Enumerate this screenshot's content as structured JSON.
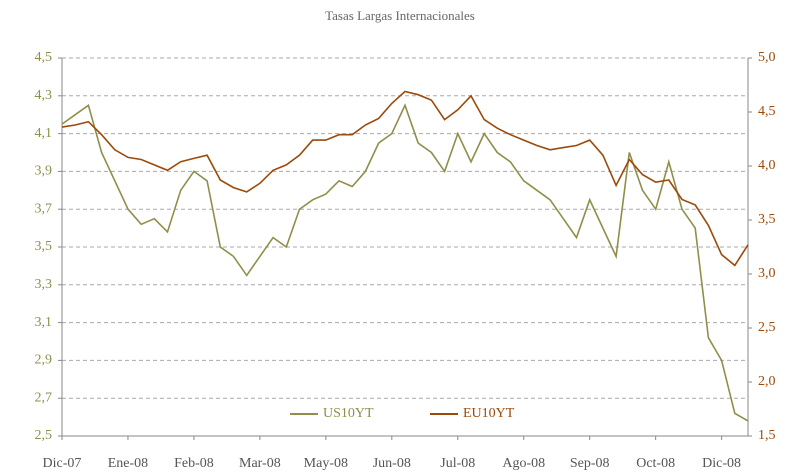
{
  "chart_data": {
    "type": "line",
    "title": "Tasas Largas Internacionales",
    "categories": [
      "Dic-07",
      null,
      null,
      null,
      null,
      "Ene-08",
      null,
      null,
      null,
      null,
      "Feb-08",
      null,
      null,
      null,
      null,
      "Mar-08",
      null,
      null,
      null,
      null,
      "May-08",
      null,
      null,
      null,
      null,
      "Jun-08",
      null,
      null,
      null,
      null,
      "Jul-08",
      null,
      null,
      null,
      null,
      "Ago-08",
      null,
      null,
      null,
      null,
      "Sep-08",
      null,
      null,
      null,
      null,
      "Oct-08",
      null,
      null,
      null,
      null,
      "Dic-08",
      null,
      null
    ],
    "series": [
      {
        "name": "US10YT",
        "color": "#8f8f4a",
        "values": [
          4.15,
          4.2,
          4.25,
          4.0,
          3.85,
          3.7,
          3.62,
          3.65,
          3.58,
          3.8,
          3.9,
          3.85,
          3.5,
          3.45,
          3.35,
          3.45,
          3.55,
          3.5,
          3.7,
          3.75,
          3.78,
          3.85,
          3.82,
          3.9,
          4.05,
          4.1,
          4.25,
          4.05,
          4.0,
          3.9,
          4.1,
          3.95,
          4.1,
          4.0,
          3.95,
          3.85,
          3.8,
          3.75,
          3.65,
          3.55,
          3.75,
          3.6,
          3.45,
          4.0,
          3.8,
          3.7,
          3.95,
          3.7,
          3.6,
          3.02,
          2.9,
          2.62,
          2.58
        ]
      },
      {
        "name": "EU10YT",
        "color": "#9c4a0a",
        "axis": "y2",
        "values": [
          4.36,
          4.38,
          4.41,
          4.29,
          4.15,
          4.08,
          4.06,
          4.01,
          3.96,
          4.04,
          4.07,
          4.1,
          3.87,
          3.8,
          3.76,
          3.84,
          3.96,
          4.01,
          4.1,
          4.24,
          4.24,
          4.29,
          4.29,
          4.38,
          4.44,
          4.58,
          4.69,
          4.66,
          4.61,
          4.43,
          4.52,
          4.65,
          4.43,
          4.35,
          4.29,
          4.24,
          4.19,
          4.15,
          4.17,
          4.19,
          4.24,
          4.1,
          3.82,
          4.06,
          3.92,
          3.85,
          3.87,
          3.69,
          3.64,
          3.45,
          3.18,
          3.08,
          3.27
        ]
      }
    ],
    "ylim": [
      2.5,
      4.5
    ],
    "yticks": [
      {
        "value": 2.5,
        "label": "2,5"
      },
      {
        "value": 2.7,
        "label": "2,7"
      },
      {
        "value": 2.9,
        "label": "2,9"
      },
      {
        "value": 3.1,
        "label": "3,1"
      },
      {
        "value": 3.3,
        "label": "3,3"
      },
      {
        "value": 3.5,
        "label": "3,5"
      },
      {
        "value": 3.7,
        "label": "3,7"
      },
      {
        "value": 3.9,
        "label": "3,9"
      },
      {
        "value": 4.1,
        "label": "4,1"
      },
      {
        "value": 4.3,
        "label": "4,3"
      },
      {
        "value": 4.5,
        "label": "4,5"
      }
    ],
    "y2lim": [
      1.5,
      5.0
    ],
    "y2ticks": [
      {
        "value": 1.5,
        "label": "1,5"
      },
      {
        "value": 2.0,
        "label": "2,0"
      },
      {
        "value": 2.5,
        "label": "2,5"
      },
      {
        "value": 3.0,
        "label": "3,0"
      },
      {
        "value": 3.5,
        "label": "3,5"
      },
      {
        "value": 4.0,
        "label": "4,0"
      },
      {
        "value": 4.5,
        "label": "4,5"
      },
      {
        "value": 5.0,
        "label": "5,0"
      }
    ],
    "grid": true,
    "legend": "lower center"
  }
}
